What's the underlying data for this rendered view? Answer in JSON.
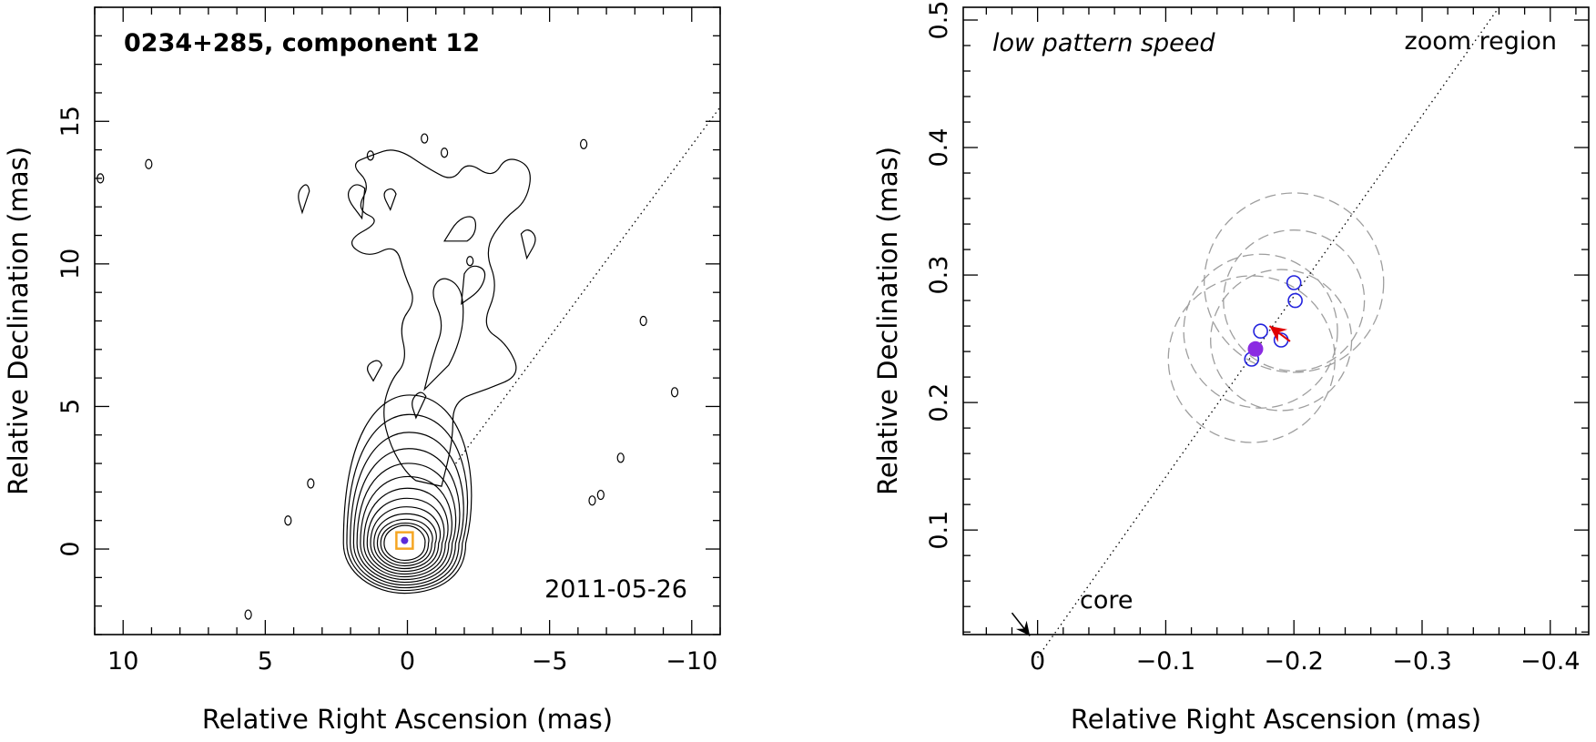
{
  "chart_data": [
    {
      "type": "contour",
      "title": "0234+285, component 12",
      "date_label": "2011-05-26",
      "xlabel": "Relative Right Ascension (mas)",
      "ylabel": "Relative Declination (mas)",
      "xlim": [
        11,
        -11
      ],
      "ylim": [
        -3,
        19
      ],
      "xticks": [
        {
          "value": 10,
          "label": "10"
        },
        {
          "value": 5,
          "label": "5"
        },
        {
          "value": 0,
          "label": "0"
        },
        {
          "value": -5,
          "label": "−5"
        },
        {
          "value": -10,
          "label": "−10"
        }
      ],
      "yticks": [
        {
          "value": 0,
          "label": "0"
        },
        {
          "value": 5,
          "label": "5"
        },
        {
          "value": 10,
          "label": "10"
        },
        {
          "value": 15,
          "label": "15"
        }
      ],
      "trajectory_line": {
        "from": [
          -1.7,
          3.0
        ],
        "to": [
          -11,
          15.5
        ]
      },
      "component_marker": {
        "x": 0.1,
        "y": 0.3,
        "color": "#f5a623"
      },
      "contour_levels": 13
    },
    {
      "type": "scatter",
      "title": "low pattern speed",
      "corner_label": "zoom region",
      "core_label": "core",
      "xlabel": "Relative Right Ascension (mas)",
      "ylabel": "Relative Declination (mas)",
      "xlim": [
        0.058,
        -0.43
      ],
      "ylim": [
        0.018,
        0.51
      ],
      "xticks": [
        {
          "value": 0,
          "label": "0"
        },
        {
          "value": -0.1,
          "label": "−0.1"
        },
        {
          "value": -0.2,
          "label": "−0.2"
        },
        {
          "value": -0.3,
          "label": "−0.3"
        },
        {
          "value": -0.4,
          "label": "−0.4"
        }
      ],
      "yticks": [
        {
          "value": 0.1,
          "label": "0.1"
        },
        {
          "value": 0.2,
          "label": "0.2"
        },
        {
          "value": 0.3,
          "label": "0.3"
        },
        {
          "value": 0.4,
          "label": "0.4"
        },
        {
          "value": 0.5,
          "label": "0.5"
        }
      ],
      "line": {
        "from": [
          0,
          0
        ],
        "to": [
          -0.36,
          0.51
        ]
      },
      "component_positions": [
        {
          "x": -0.167,
          "y": 0.234
        },
        {
          "x": -0.174,
          "y": 0.256
        },
        {
          "x": -0.19,
          "y": 0.249
        },
        {
          "x": -0.2,
          "y": 0.294
        },
        {
          "x": -0.201,
          "y": 0.28
        }
      ],
      "error_circles": [
        {
          "x": -0.2,
          "y": 0.294,
          "r": 0.07
        },
        {
          "x": -0.2,
          "y": 0.28,
          "r": 0.055
        },
        {
          "x": -0.19,
          "y": 0.249,
          "r": 0.055
        },
        {
          "x": -0.174,
          "y": 0.256,
          "r": 0.06
        },
        {
          "x": -0.167,
          "y": 0.234,
          "r": 0.065
        }
      ],
      "mean_position": {
        "x": -0.17,
        "y": 0.242
      },
      "direction_arrow": {
        "from": [
          -0.197,
          0.248
        ],
        "to": [
          -0.181,
          0.26
        ]
      },
      "core_arrow": {
        "from": [
          0.02,
          0.035
        ],
        "to": [
          0.006,
          0.017
        ]
      },
      "colors": {
        "circles": "#2222dd",
        "mean": "#8a2be2",
        "arrow": "#e00000",
        "errors": "#9e9e9e"
      }
    }
  ]
}
